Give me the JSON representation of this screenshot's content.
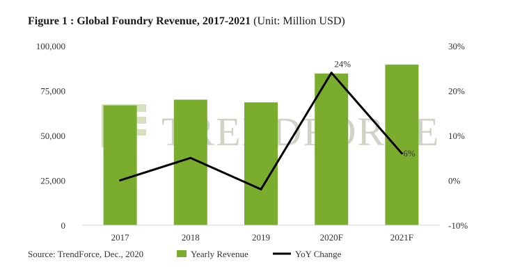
{
  "title": "Figure 1 : Global Foundry Revenue, 2017-2021",
  "unit": "(Unit: Million USD)",
  "watermark": "TRENDFORCE",
  "source": "Source: TrendForce, Dec., 2020",
  "colors": {
    "bar": "#7aad2e",
    "line": "#000000",
    "watermark": "#9aa08a"
  },
  "chart_data": {
    "type": "bar",
    "title": "Figure 1 : Global Foundry Revenue, 2017-2021",
    "categories": [
      "2017",
      "2018",
      "2019",
      "2020F",
      "2021F"
    ],
    "series": [
      {
        "name": "Yearly Revenue",
        "type": "bar",
        "axis": "left",
        "values": [
          66800,
          70000,
          68500,
          84600,
          89600
        ]
      },
      {
        "name": "YoY Change",
        "type": "line",
        "axis": "right",
        "values": [
          0,
          5,
          -2,
          24,
          6
        ]
      }
    ],
    "y_left": {
      "range": [
        0,
        100000
      ],
      "ticks": [
        0,
        25000,
        50000,
        75000,
        100000
      ],
      "tick_labels": [
        "0",
        "25,000",
        "50,000",
        "75,000",
        "100,000"
      ]
    },
    "y_right": {
      "range": [
        -10,
        30
      ],
      "ticks": [
        -10,
        0,
        10,
        20,
        30
      ],
      "tick_labels": [
        "-10%",
        "0%",
        "10%",
        "20%",
        "30%"
      ]
    },
    "data_labels": [
      {
        "series": "YoY Change",
        "category": "2020F",
        "text": "24%"
      },
      {
        "series": "YoY Change",
        "category": "2021F",
        "text": "6%"
      }
    ],
    "grid": false,
    "legend_position": "bottom"
  }
}
